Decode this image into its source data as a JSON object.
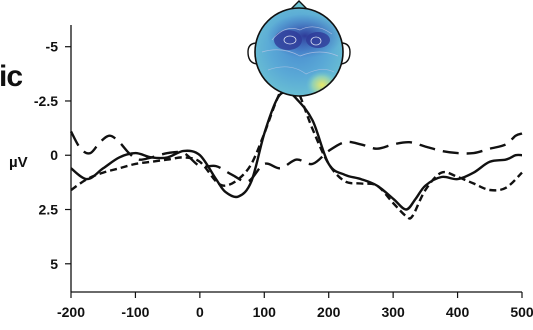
{
  "page": {
    "partial_title": "ic"
  },
  "chart_data": {
    "type": "line",
    "title": "",
    "xlabel": "",
    "ylabel": "µV",
    "xlim": [
      -200,
      500
    ],
    "ylim": [
      -6,
      6.3
    ],
    "y_inverted": true,
    "x_ticks": [
      -200,
      -100,
      0,
      100,
      200,
      300,
      400,
      500
    ],
    "x_tick_labels": [
      "-200",
      "-100",
      "0",
      "100",
      "200",
      "300",
      "400",
      "500"
    ],
    "y_ticks": [
      -5,
      -2.5,
      0,
      2.5,
      5
    ],
    "y_tick_labels": [
      "-5",
      "-2.5",
      "0",
      "2.5",
      "5"
    ],
    "grid": false,
    "legend": "none",
    "series": [
      {
        "style": "solid",
        "color": "#111111",
        "x": [
          -200,
          -175,
          -150,
          -125,
          -100,
          -75,
          -50,
          -25,
          0,
          25,
          40,
          60,
          80,
          100,
          120,
          135,
          150,
          175,
          200,
          225,
          250,
          275,
          300,
          320,
          335,
          350,
          375,
          400,
          425,
          450,
          475,
          490,
          500
        ],
        "y": [
          0.6,
          1.1,
          0.6,
          0.1,
          -0.1,
          0.1,
          0.1,
          -0.2,
          0,
          1.1,
          1.7,
          1.9,
          1.2,
          -1.0,
          -2.6,
          -2.9,
          -2.6,
          -1.6,
          0.4,
          0.9,
          1.1,
          1.4,
          2.0,
          2.5,
          2.0,
          1.4,
          1.0,
          1.1,
          0.8,
          0.3,
          0.2,
          0,
          0
        ]
      },
      {
        "style": "short-dash",
        "color": "#111111",
        "x": [
          -200,
          -175,
          -150,
          -125,
          -100,
          -75,
          -50,
          -25,
          0,
          25,
          40,
          60,
          80,
          100,
          120,
          135,
          150,
          175,
          200,
          225,
          250,
          275,
          300,
          320,
          330,
          350,
          375,
          400,
          425,
          450,
          475,
          500
        ],
        "y": [
          1.6,
          1.1,
          0.8,
          0.6,
          0.4,
          0.3,
          0.2,
          0.1,
          0.3,
          1.2,
          1.4,
          1.1,
          0.4,
          -1.0,
          -2.6,
          -3.4,
          -3.1,
          -1.2,
          0.4,
          1.2,
          1.3,
          1.4,
          2.2,
          2.8,
          2.8,
          1.6,
          0.8,
          1.0,
          1.3,
          1.6,
          1.5,
          0.8
        ]
      },
      {
        "style": "long-dash",
        "color": "#111111",
        "x": [
          -200,
          -185,
          -170,
          -155,
          -140,
          -125,
          -110,
          -95,
          -75,
          -50,
          -25,
          0,
          25,
          50,
          75,
          100,
          125,
          150,
          175,
          200,
          225,
          250,
          275,
          300,
          325,
          350,
          375,
          400,
          425,
          450,
          475,
          490,
          500
        ],
        "y": [
          -1.1,
          -0.3,
          -0.1,
          -0.6,
          -0.9,
          -0.6,
          -0.1,
          0.2,
          0.1,
          -0.1,
          -0.1,
          0.5,
          0.5,
          0.9,
          1.2,
          0.4,
          0.6,
          0.2,
          0.4,
          -0.2,
          -0.6,
          -0.5,
          -0.3,
          -0.5,
          -0.6,
          -0.4,
          -0.2,
          -0.1,
          -0.1,
          -0.3,
          -0.5,
          -0.9,
          -1.0
        ]
      }
    ]
  },
  "inset": {
    "type": "topographic-scalp-map",
    "colors": [
      "#2f3b98",
      "#3d64c0",
      "#4a8dd0",
      "#5fb0d8",
      "#8fd0b8",
      "#e8e86a"
    ]
  }
}
